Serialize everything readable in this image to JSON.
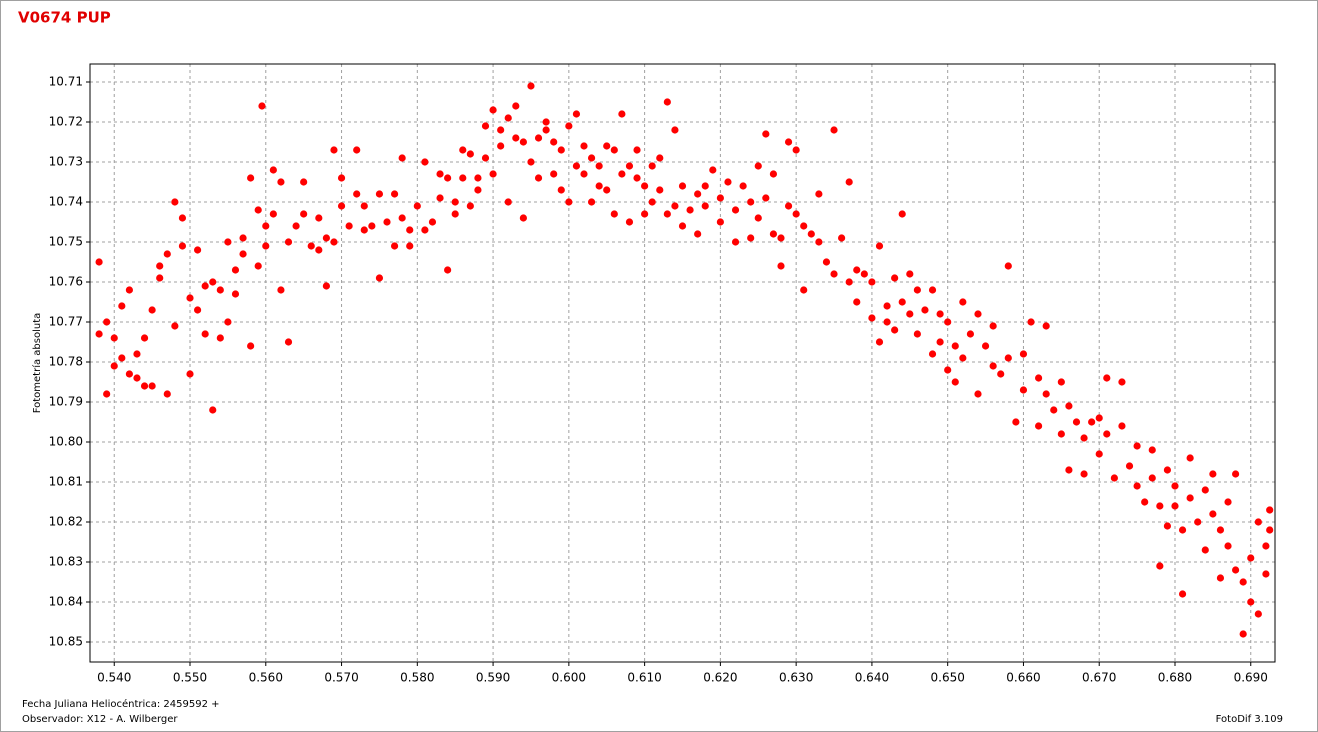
{
  "chart_data": {
    "type": "scatter",
    "title": "V0674 PUP",
    "y_label": "Fotometría absoluta",
    "x_label": "Fecha Juliana Heliocéntrica: 2459592 +",
    "observer": "Observador: X12 - A. Wilberger",
    "software": "FotoDif 3.109",
    "color": "#ff0000",
    "grid": true,
    "xlim": [
      0.5368,
      0.6932
    ],
    "ylim": [
      10.855,
      10.7055
    ],
    "xticks": [
      {
        "value": 0.54,
        "label": "0.540"
      },
      {
        "value": 0.55,
        "label": "0.550"
      },
      {
        "value": 0.56,
        "label": "0.560"
      },
      {
        "value": 0.57,
        "label": "0.570"
      },
      {
        "value": 0.58,
        "label": "0.580"
      },
      {
        "value": 0.59,
        "label": "0.590"
      },
      {
        "value": 0.6,
        "label": "0.600"
      },
      {
        "value": 0.61,
        "label": "0.610"
      },
      {
        "value": 0.62,
        "label": "0.620"
      },
      {
        "value": 0.63,
        "label": "0.630"
      },
      {
        "value": 0.64,
        "label": "0.640"
      },
      {
        "value": 0.65,
        "label": "0.650"
      },
      {
        "value": 0.66,
        "label": "0.660"
      },
      {
        "value": 0.67,
        "label": "0.670"
      },
      {
        "value": 0.68,
        "label": "0.680"
      },
      {
        "value": 0.69,
        "label": "0.690"
      }
    ],
    "yticks": [
      10.71,
      10.72,
      10.73,
      10.74,
      10.75,
      10.76,
      10.77,
      10.78,
      10.79,
      {
        "value": 10.8,
        "label": "10.80"
      },
      10.81,
      10.82,
      10.83,
      10.84,
      10.85
    ],
    "x": [
      0.538,
      0.538,
      0.539,
      0.539,
      0.54,
      0.54,
      0.541,
      0.541,
      0.542,
      0.542,
      0.543,
      0.543,
      0.544,
      0.544,
      0.545,
      0.545,
      0.546,
      0.546,
      0.547,
      0.547,
      0.548,
      0.548,
      0.549,
      0.549,
      0.55,
      0.55,
      0.551,
      0.551,
      0.552,
      0.552,
      0.553,
      0.553,
      0.554,
      0.554,
      0.555,
      0.555,
      0.556,
      0.556,
      0.557,
      0.557,
      0.558,
      0.558,
      0.559,
      0.559,
      0.56,
      0.56,
      0.561,
      0.561,
      0.562,
      0.562,
      0.563,
      0.563,
      0.5595,
      0.564,
      0.565,
      0.565,
      0.566,
      0.567,
      0.567,
      0.568,
      0.568,
      0.569,
      0.569,
      0.57,
      0.57,
      0.571,
      0.572,
      0.572,
      0.573,
      0.573,
      0.574,
      0.575,
      0.575,
      0.576,
      0.577,
      0.577,
      0.578,
      0.578,
      0.579,
      0.579,
      0.58,
      0.581,
      0.581,
      0.582,
      0.583,
      0.583,
      0.584,
      0.584,
      0.585,
      0.585,
      0.586,
      0.586,
      0.587,
      0.587,
      0.588,
      0.588,
      0.589,
      0.589,
      0.59,
      0.59,
      0.591,
      0.591,
      0.592,
      0.592,
      0.593,
      0.593,
      0.594,
      0.594,
      0.595,
      0.595,
      0.596,
      0.596,
      0.597,
      0.597,
      0.598,
      0.598,
      0.599,
      0.599,
      0.6,
      0.6,
      0.601,
      0.601,
      0.602,
      0.602,
      0.603,
      0.603,
      0.604,
      0.604,
      0.605,
      0.605,
      0.606,
      0.606,
      0.607,
      0.607,
      0.608,
      0.608,
      0.609,
      0.609,
      0.61,
      0.61,
      0.611,
      0.611,
      0.612,
      0.612,
      0.613,
      0.613,
      0.614,
      0.614,
      0.615,
      0.615,
      0.616,
      0.617,
      0.617,
      0.618,
      0.618,
      0.619,
      0.62,
      0.62,
      0.621,
      0.622,
      0.622,
      0.623,
      0.624,
      0.624,
      0.625,
      0.625,
      0.626,
      0.626,
      0.627,
      0.627,
      0.628,
      0.628,
      0.629,
      0.629,
      0.63,
      0.63,
      0.631,
      0.631,
      0.632,
      0.633,
      0.633,
      0.634,
      0.635,
      0.635,
      0.636,
      0.637,
      0.637,
      0.638,
      0.638,
      0.639,
      0.64,
      0.64,
      0.641,
      0.641,
      0.642,
      0.642,
      0.643,
      0.643,
      0.644,
      0.644,
      0.645,
      0.645,
      0.646,
      0.646,
      0.647,
      0.648,
      0.648,
      0.649,
      0.649,
      0.65,
      0.65,
      0.651,
      0.651,
      0.652,
      0.652,
      0.653,
      0.654,
      0.654,
      0.655,
      0.656,
      0.656,
      0.657,
      0.658,
      0.658,
      0.659,
      0.66,
      0.66,
      0.661,
      0.662,
      0.662,
      0.663,
      0.663,
      0.664,
      0.665,
      0.665,
      0.666,
      0.666,
      0.667,
      0.668,
      0.668,
      0.669,
      0.67,
      0.67,
      0.671,
      0.671,
      0.672,
      0.673,
      0.673,
      0.674,
      0.675,
      0.675,
      0.676,
      0.677,
      0.677,
      0.678,
      0.678,
      0.679,
      0.679,
      0.68,
      0.68,
      0.681,
      0.681,
      0.682,
      0.682,
      0.683,
      0.684,
      0.684,
      0.685,
      0.685,
      0.686,
      0.686,
      0.687,
      0.687,
      0.688,
      0.688,
      0.689,
      0.689,
      0.69,
      0.69,
      0.691,
      0.691,
      0.692,
      0.692,
      0.6925,
      0.6925
    ],
    "values": [
      10.755,
      10.773,
      10.77,
      10.788,
      10.781,
      10.774,
      10.766,
      10.779,
      10.783,
      10.762,
      10.778,
      10.784,
      10.774,
      10.786,
      10.767,
      10.786,
      10.759,
      10.756,
      10.753,
      10.788,
      10.771,
      10.74,
      10.744,
      10.751,
      10.764,
      10.783,
      10.752,
      10.767,
      10.761,
      10.773,
      10.76,
      10.792,
      10.762,
      10.774,
      10.75,
      10.77,
      10.757,
      10.763,
      10.749,
      10.753,
      10.734,
      10.776,
      10.742,
      10.756,
      10.751,
      10.746,
      10.732,
      10.743,
      10.762,
      10.735,
      10.775,
      10.75,
      10.716,
      10.746,
      10.743,
      10.735,
      10.751,
      10.744,
      10.752,
      10.761,
      10.749,
      10.727,
      10.75,
      10.741,
      10.734,
      10.746,
      10.727,
      10.738,
      10.747,
      10.741,
      10.746,
      10.759,
      10.738,
      10.745,
      10.751,
      10.738,
      10.744,
      10.729,
      10.747,
      10.751,
      10.741,
      10.747,
      10.73,
      10.745,
      10.739,
      10.733,
      10.734,
      10.757,
      10.74,
      10.743,
      10.727,
      10.734,
      10.741,
      10.728,
      10.734,
      10.737,
      10.729,
      10.721,
      10.717,
      10.733,
      10.726,
      10.722,
      10.719,
      10.74,
      10.716,
      10.724,
      10.725,
      10.744,
      10.711,
      10.73,
      10.724,
      10.734,
      10.722,
      10.72,
      10.725,
      10.733,
      10.727,
      10.737,
      10.721,
      10.74,
      10.731,
      10.718,
      10.733,
      10.726,
      10.74,
      10.729,
      10.731,
      10.736,
      10.737,
      10.726,
      10.727,
      10.743,
      10.733,
      10.718,
      10.745,
      10.731,
      10.734,
      10.727,
      10.736,
      10.743,
      10.731,
      10.74,
      10.729,
      10.737,
      10.715,
      10.743,
      10.741,
      10.722,
      10.736,
      10.746,
      10.742,
      10.738,
      10.748,
      10.736,
      10.741,
      10.732,
      10.739,
      10.745,
      10.735,
      10.742,
      10.75,
      10.736,
      10.749,
      10.74,
      10.731,
      10.744,
      10.739,
      10.723,
      10.748,
      10.733,
      10.756,
      10.749,
      10.725,
      10.741,
      10.743,
      10.727,
      10.762,
      10.746,
      10.748,
      10.75,
      10.738,
      10.755,
      10.722,
      10.758,
      10.749,
      10.76,
      10.735,
      10.765,
      10.757,
      10.758,
      10.769,
      10.76,
      10.775,
      10.751,
      10.766,
      10.77,
      10.772,
      10.759,
      10.765,
      10.743,
      10.768,
      10.758,
      10.773,
      10.762,
      10.767,
      10.778,
      10.762,
      10.775,
      10.768,
      10.782,
      10.77,
      10.776,
      10.785,
      10.779,
      10.765,
      10.773,
      10.768,
      10.788,
      10.776,
      10.781,
      10.771,
      10.783,
      10.779,
      10.756,
      10.795,
      10.778,
      10.787,
      10.77,
      10.784,
      10.796,
      10.788,
      10.771,
      10.792,
      10.798,
      10.785,
      10.791,
      10.807,
      10.795,
      10.799,
      10.808,
      10.795,
      10.803,
      10.794,
      10.784,
      10.798,
      10.809,
      10.796,
      10.785,
      10.806,
      10.811,
      10.801,
      10.815,
      10.802,
      10.809,
      10.816,
      10.831,
      10.807,
      10.821,
      10.816,
      10.811,
      10.822,
      10.838,
      10.814,
      10.804,
      10.82,
      10.827,
      10.812,
      10.818,
      10.808,
      10.834,
      10.822,
      10.826,
      10.815,
      10.832,
      10.808,
      10.835,
      10.848,
      10.829,
      10.84,
      10.843,
      10.82,
      10.833,
      10.826,
      10.817,
      10.822
    ]
  }
}
